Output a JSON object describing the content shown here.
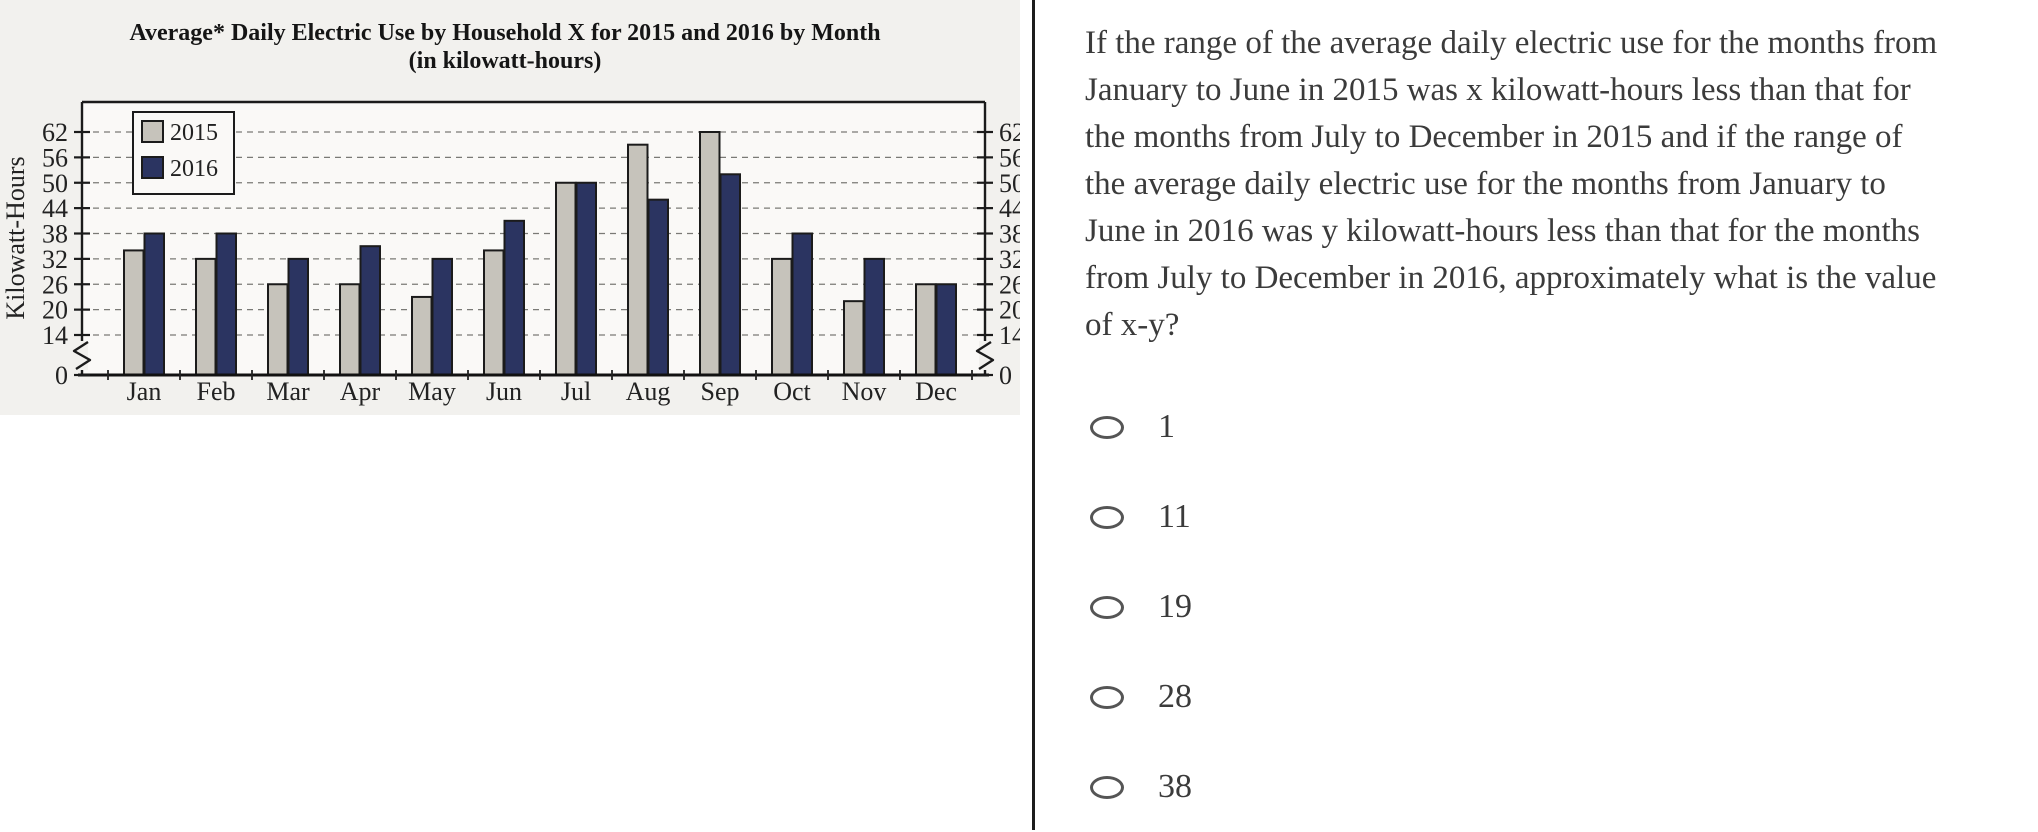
{
  "chart_data": {
    "type": "bar",
    "title": "Average* Daily Electric Use by Household X for 2015 and 2016 by Month",
    "subtitle": "(in kilowatt-hours)",
    "ylabel": "Kilowatt-Hours",
    "categories": [
      "Jan",
      "Feb",
      "Mar",
      "Apr",
      "May",
      "Jun",
      "Jul",
      "Aug",
      "Sep",
      "Oct",
      "Nov",
      "Dec"
    ],
    "series": [
      {
        "name": "2015",
        "color": "#c6c3bb",
        "values": [
          34,
          32,
          26,
          26,
          23,
          34,
          50,
          59,
          62,
          32,
          22,
          26
        ]
      },
      {
        "name": "2016",
        "color": "#2b3461",
        "values": [
          38,
          38,
          32,
          35,
          32,
          41,
          50,
          46,
          52,
          38,
          32,
          26
        ]
      }
    ],
    "yticks": [
      0,
      14,
      20,
      26,
      32,
      38,
      44,
      50,
      56,
      62
    ],
    "ylim": [
      0,
      66
    ],
    "axis_break_between": [
      0,
      14
    ],
    "grid": true,
    "legend_position": "top-left",
    "legend_labels": [
      "2015",
      "2016"
    ]
  },
  "question": {
    "lines": [
      "If the range of the average daily electric use for the months from",
      "January to June in 2015 was x kilowatt-hours less than that for",
      "the months from July to December in 2015 and if the range of",
      "the average daily electric use for the months from January to",
      "June in 2016 was y kilowatt-hours less than that for the months",
      "from July to December in 2016, approximately what is the value",
      "of x-y?"
    ],
    "options": [
      "1",
      "11",
      "19",
      "28",
      "38"
    ]
  },
  "colors": {
    "series_2015": "#c6c3bb",
    "series_2016": "#2b3461",
    "scan_background": "#f2f1ee",
    "plot_background": "#faf9f7",
    "ink": "#1b1b1b",
    "text": "#3b3b3b",
    "divider": "#1c1c1c"
  }
}
